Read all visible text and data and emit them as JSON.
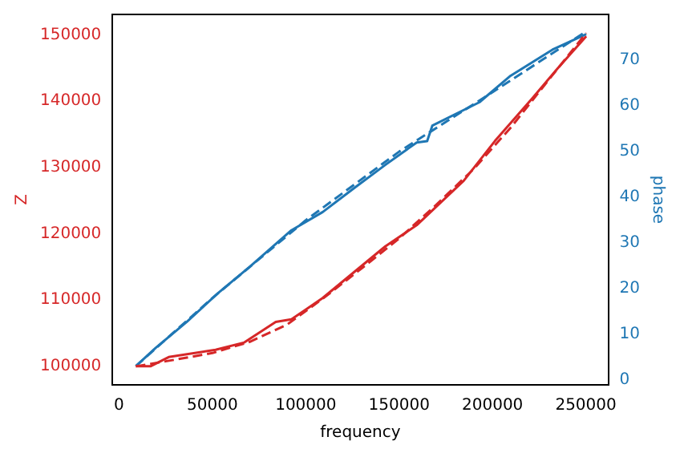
{
  "chart_data": {
    "type": "line",
    "xlabel": "frequency",
    "ylabel": "Z",
    "y2label": "phase",
    "marker": "none",
    "grid": false,
    "legend": false,
    "xlim": [
      -3500,
      262000
    ],
    "xticks": [
      0,
      50000,
      100000,
      150000,
      200000,
      250000
    ],
    "ylim": [
      97200,
      153100
    ],
    "yticks": [
      100000,
      110000,
      120000,
      130000,
      140000,
      150000
    ],
    "y2lim": [
      -1,
      80
    ],
    "y2ticks": [
      0,
      10,
      20,
      30,
      40,
      50,
      60,
      70
    ],
    "series": [
      {
        "color": "#d62728",
        "axis": "y",
        "line_style": "solid",
        "x": [
          9000,
          16800,
          26600,
          51700,
          67100,
          83900,
          92300,
          100700,
          109000,
          125800,
          142600,
          159400,
          184600,
          201300,
          220900,
          235000,
          250200
        ],
        "values": [
          100000,
          100000,
          101400,
          102500,
          103600,
          106700,
          107100,
          108700,
          110300,
          114200,
          118100,
          121300,
          128000,
          134000,
          140300,
          145000,
          149800
        ]
      },
      {
        "color": "#d62728",
        "axis": "y",
        "line_style": "dashed",
        "x": [
          9000,
          30000,
          50000,
          70000,
          90000,
          110000,
          130000,
          150000,
          170000,
          190000,
          210000,
          230000,
          250200
        ],
        "values": [
          100000,
          101000,
          102000,
          103700,
          106300,
          110400,
          114800,
          119300,
          124400,
          129800,
          136100,
          143200,
          150300
        ]
      },
      {
        "color": "#1f77b4",
        "axis": "y2",
        "line_style": "solid",
        "x": [
          9000,
          19600,
          36300,
          53100,
          69900,
          92300,
          109100,
          125800,
          137000,
          142600,
          159400,
          165000,
          167800,
          193000,
          209700,
          232100,
          250200
        ],
        "values": [
          3.1,
          7.1,
          12.8,
          19.1,
          24.8,
          32.8,
          36.8,
          42,
          45.4,
          47.1,
          52,
          52.3,
          55.7,
          60.8,
          66.6,
          72.3,
          75.7
        ]
      },
      {
        "color": "#1f77b4",
        "axis": "y2",
        "line_style": "dashed",
        "x": [
          9000,
          50000,
          100000,
          150000,
          200000,
          250200
        ],
        "values": [
          3.1,
          18,
          35,
          50,
          63,
          76.3
        ]
      }
    ]
  }
}
